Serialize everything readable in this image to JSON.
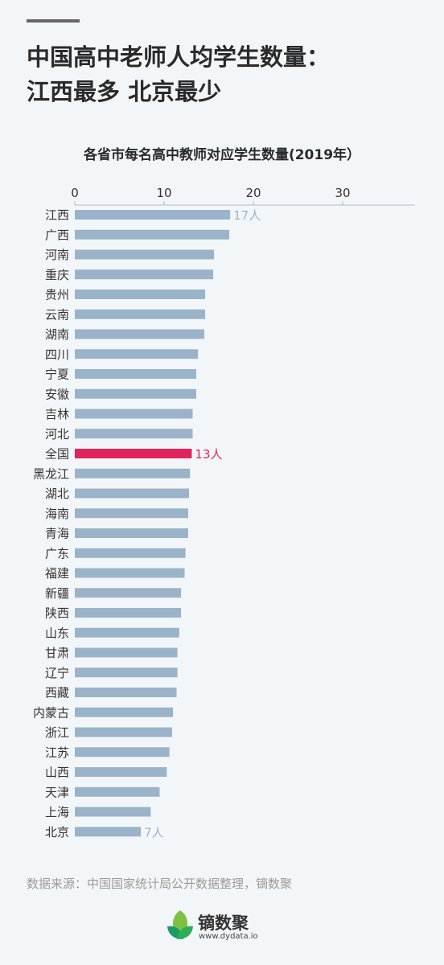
{
  "header": {
    "title_line1": "中国高中老师人均学生数量：",
    "title_line2": "江西最多 北京最少"
  },
  "chart_data": {
    "type": "bar",
    "orientation": "horizontal",
    "title": "各省市每名高中教师对应学生数量(2019年）",
    "xlim": [
      0,
      37
    ],
    "xticks": [
      "0",
      "10",
      "20",
      "30"
    ],
    "xtick_values": [
      0,
      10,
      20,
      30
    ],
    "categories": [
      "江西",
      "广西",
      "河南",
      "重庆",
      "贵州",
      "云南",
      "湖南",
      "四川",
      "宁夏",
      "安徽",
      "吉林",
      "河北",
      "全国",
      "黑龙江",
      "湖北",
      "海南",
      "青海",
      "广东",
      "福建",
      "新疆",
      "陕西",
      "山东",
      "甘肃",
      "辽宁",
      "西藏",
      "内蒙古",
      "浙江",
      "江苏",
      "山西",
      "天津",
      "上海",
      "北京"
    ],
    "values": [
      17.4,
      17.3,
      15.6,
      15.5,
      14.6,
      14.6,
      14.5,
      13.8,
      13.6,
      13.6,
      13.2,
      13.2,
      13.1,
      12.9,
      12.8,
      12.7,
      12.7,
      12.4,
      12.3,
      11.9,
      11.9,
      11.7,
      11.5,
      11.5,
      11.4,
      11.0,
      10.9,
      10.6,
      10.3,
      9.5,
      8.5,
      7.4
    ],
    "highlight": "全国",
    "data_labels": [
      {
        "category": "江西",
        "text": "17人"
      },
      {
        "category": "全国",
        "text": "13人"
      },
      {
        "category": "北京",
        "text": "7人"
      }
    ],
    "colors": {
      "bar": "#9bb3c9",
      "highlight": "#e0245e",
      "label": "#9bb3c9",
      "highlight_label": "#e0245e"
    }
  },
  "footer": {
    "source": "数据来源：中国国家统计局公开数据整理，镝数聚",
    "logo_name": "镝数聚",
    "logo_url": "www.dydata.io",
    "logo_icon": "leaf-icon",
    "logo_colors": [
      "#7cc242",
      "#1a9a6a"
    ]
  }
}
